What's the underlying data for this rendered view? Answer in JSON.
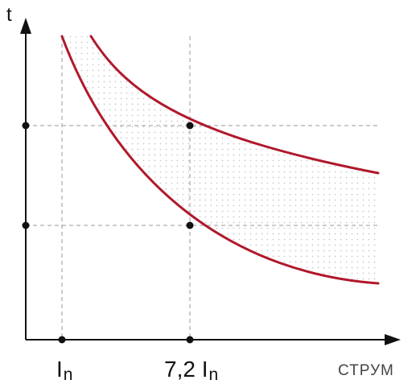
{
  "labels": {
    "y_axis": "t",
    "x_axis": "СТРУМ",
    "tick_in_main": "I",
    "tick_in_sub": "n",
    "tick_72_prefix": "7,2 I",
    "tick_72_sub": "n"
  },
  "colors": {
    "curve": "#b0182b",
    "axis": "#111111",
    "guide": "#9a9a9a",
    "band_dots": "#c8c8c8"
  }
}
